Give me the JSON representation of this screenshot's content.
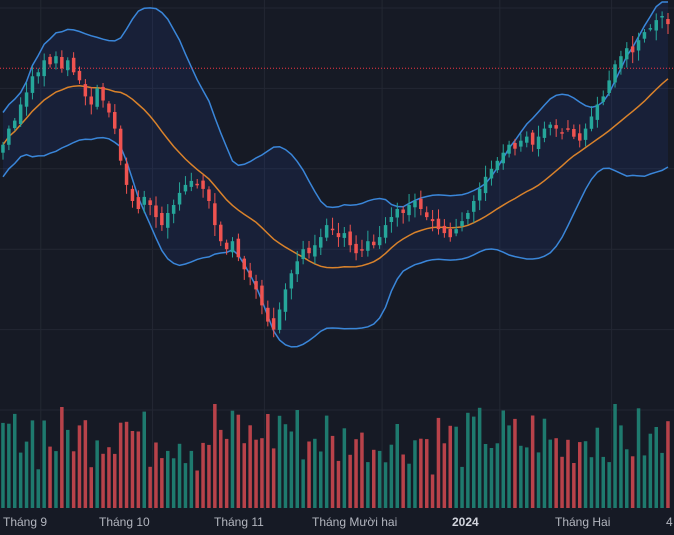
{
  "chart_data": {
    "type": "candlestick",
    "x_tick_labels": [
      "Tháng 9",
      "Tháng 10",
      "Tháng 11",
      "Tháng Mười hai",
      "2024",
      "Tháng Hai",
      "4"
    ],
    "x_tick_index": [
      2,
      21,
      40,
      60,
      80,
      99,
      119
    ],
    "bold_tick": "2024",
    "indicators": [
      "Bollinger Bands (upper)",
      "Bollinger Bands (basis)",
      "Bollinger Bands (lower)",
      "Volume"
    ],
    "price_range": [
      0,
      100
    ],
    "price_line_level": 85,
    "close": [
      66,
      70,
      72,
      76,
      79,
      83,
      84,
      87,
      86,
      88,
      85,
      87,
      84,
      82,
      78,
      76,
      80,
      77,
      74,
      70,
      62,
      56,
      52,
      50,
      53,
      51,
      48,
      46,
      49,
      51,
      54,
      56,
      57,
      56,
      55,
      52,
      46,
      42,
      40,
      42,
      38,
      35,
      33,
      30,
      26,
      22,
      20,
      25,
      30,
      34,
      37,
      40,
      39,
      41,
      43,
      46,
      45,
      43,
      44,
      41,
      39,
      40,
      42,
      41,
      43,
      46,
      48,
      50,
      49,
      51,
      52,
      50,
      48,
      47,
      45,
      44,
      43,
      45,
      47,
      49,
      52,
      55,
      58,
      60,
      62,
      64,
      66,
      65,
      67,
      68,
      66,
      68,
      70,
      71,
      70,
      69,
      70,
      68,
      67,
      70,
      73,
      76,
      78,
      82,
      86,
      88,
      90,
      89,
      92,
      94,
      95,
      97,
      98,
      96
    ]
  },
  "colors": {
    "background": "#161a25",
    "grid": "#232733",
    "up": "#26a69a",
    "down": "#ef5350",
    "band": "#2962ff",
    "band_line": "#3a86d9",
    "basis": "#d9822b",
    "price_line": "#f23645",
    "up_volume": "#1e7a6e",
    "down_volume": "#b8424a"
  }
}
